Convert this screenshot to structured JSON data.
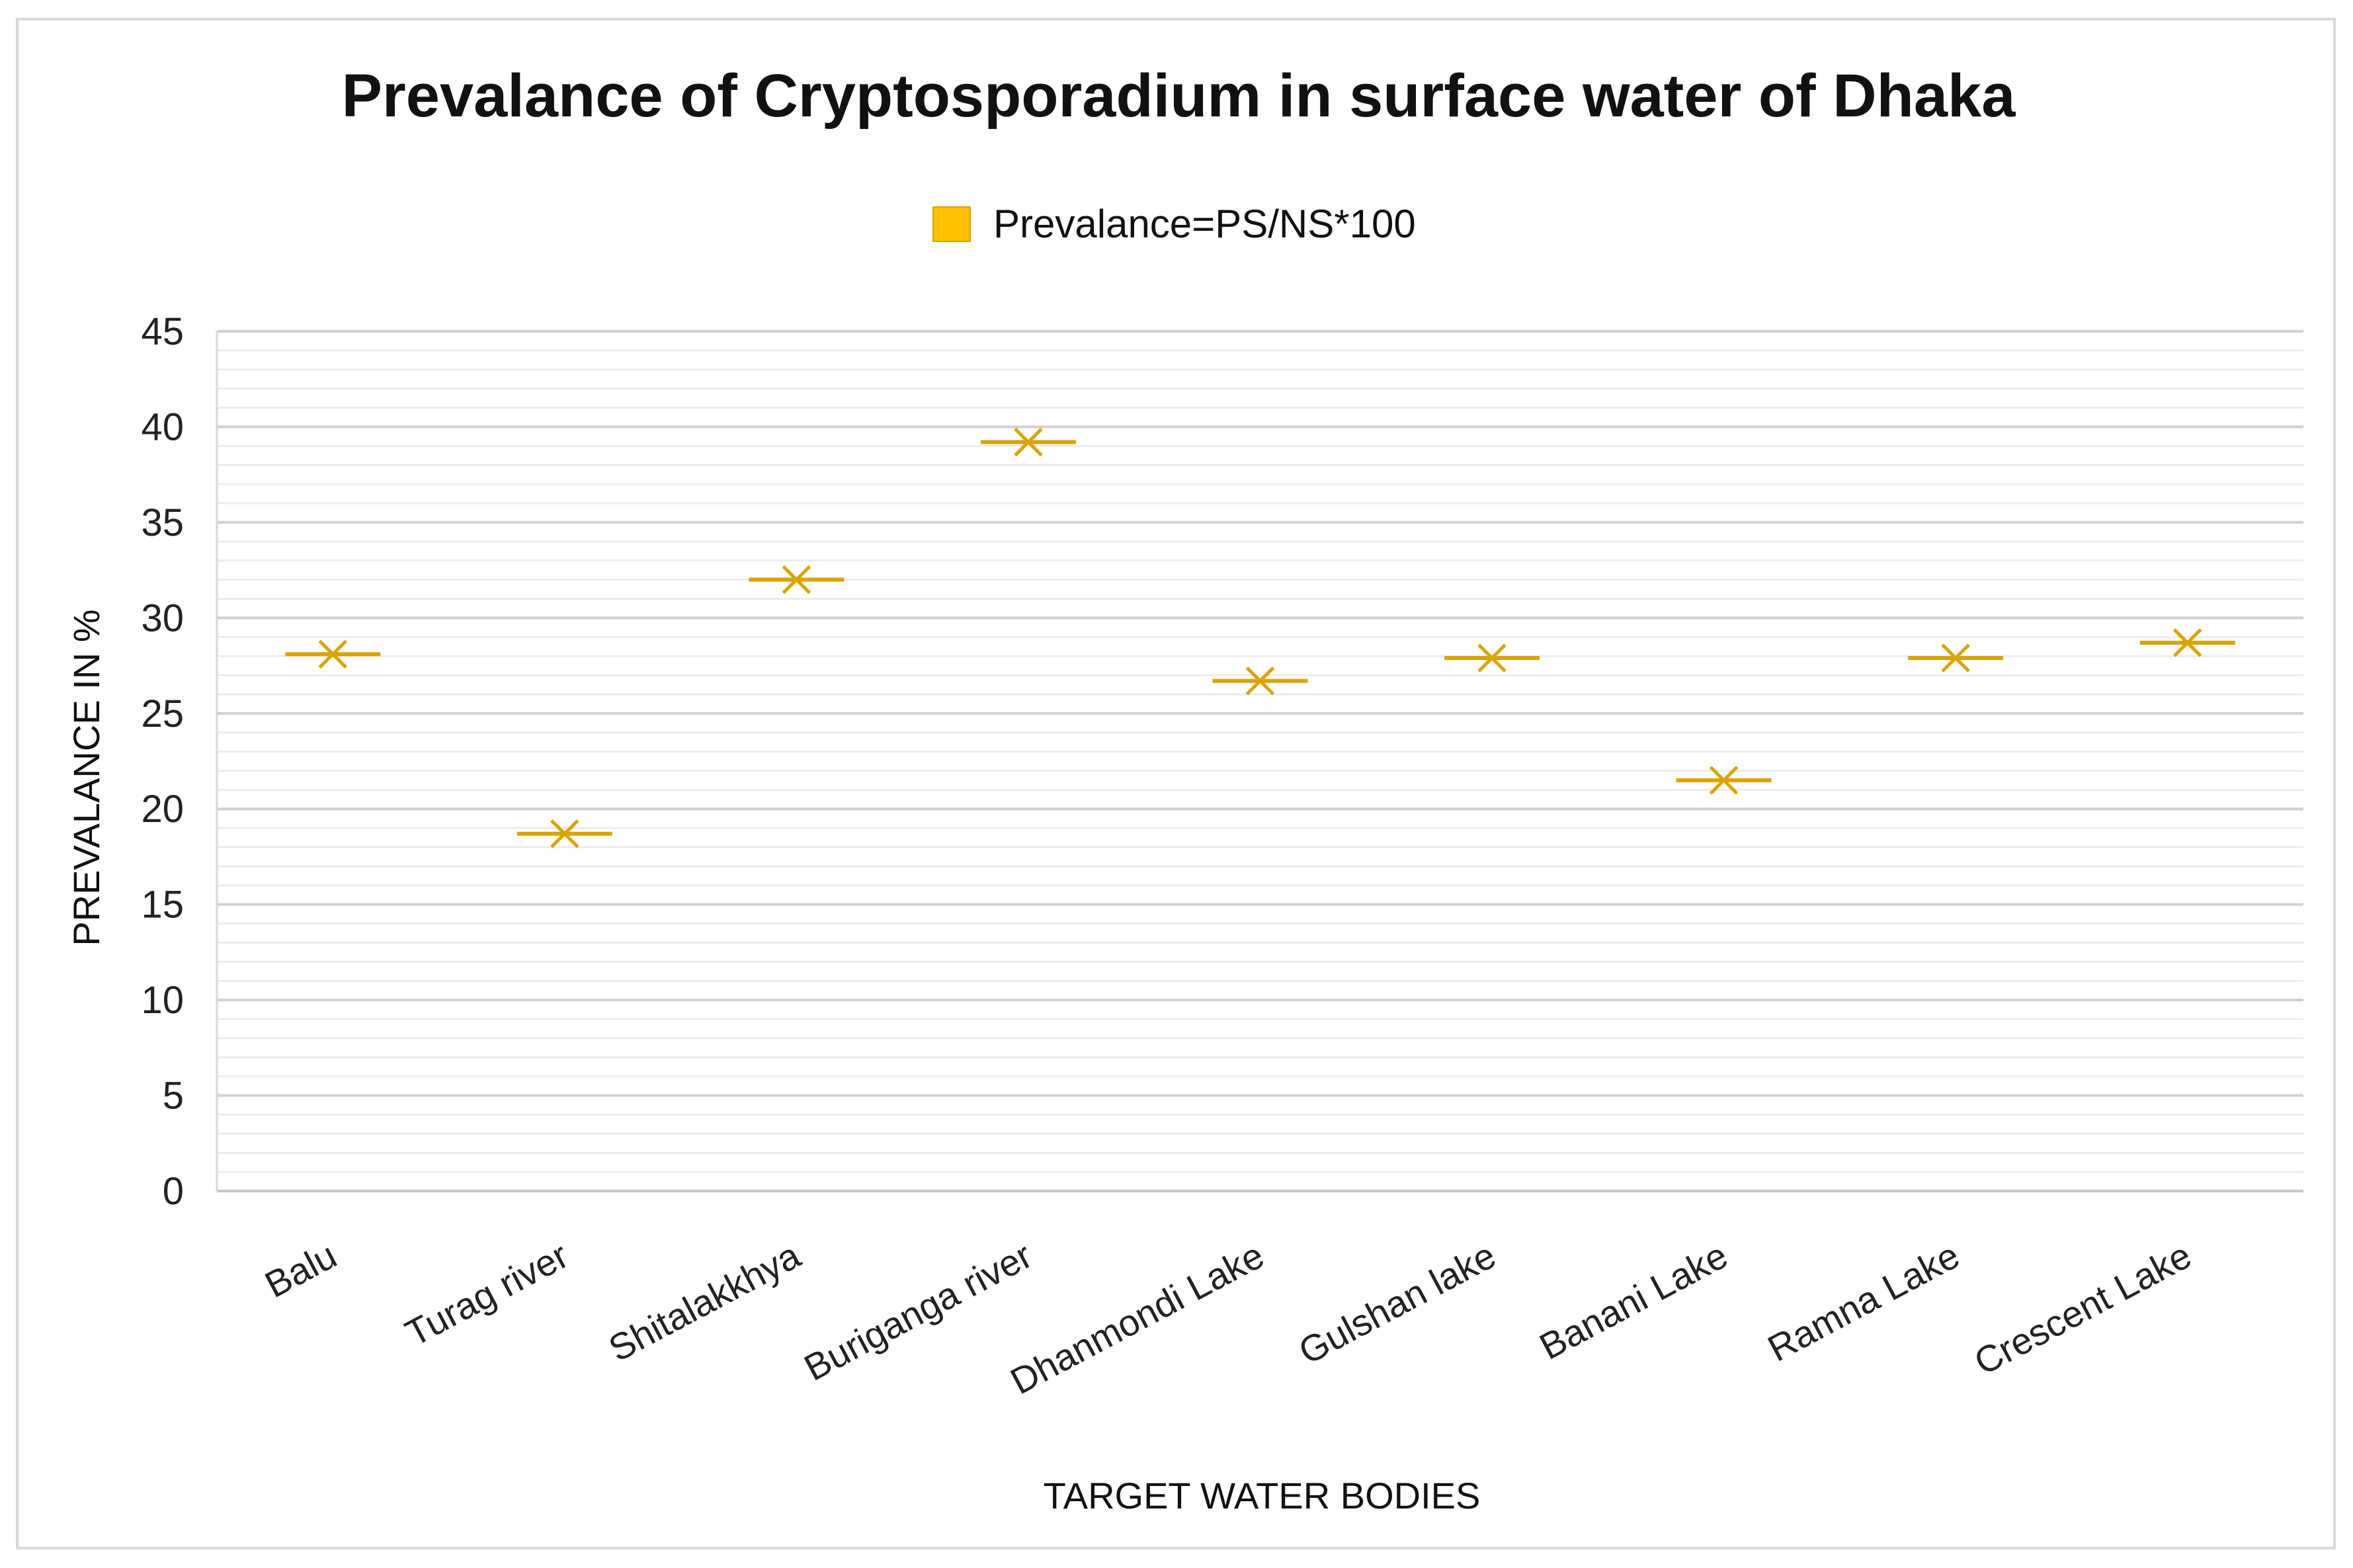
{
  "chart_data": {
    "type": "scatter",
    "title": "Prevalance of Cryptosporadium in surface water of Dhaka",
    "legend": {
      "label": "Prevalance=PS/NS*100",
      "color": "#ffc000",
      "position": "top"
    },
    "marker_color": "#d9a300",
    "marker": "dash-x",
    "xlabel": "TARGET WATER BODIES",
    "ylabel": "PREVALANCE IN %",
    "ylim": [
      0,
      45
    ],
    "yticks": [
      0,
      5,
      10,
      15,
      20,
      25,
      30,
      35,
      40,
      45
    ],
    "minor_grid_step": 1,
    "grid": true,
    "categories": [
      "Balu",
      "Turag river",
      "Shitalakkhya",
      "Buriganga river",
      "Dhanmondi Lake",
      "Gulshan lake",
      "Banani Lake",
      "Ramna Lake",
      "Crescent Lake"
    ],
    "values": [
      28.1,
      18.7,
      32.0,
      39.2,
      26.7,
      27.9,
      21.5,
      27.9,
      28.7
    ]
  }
}
